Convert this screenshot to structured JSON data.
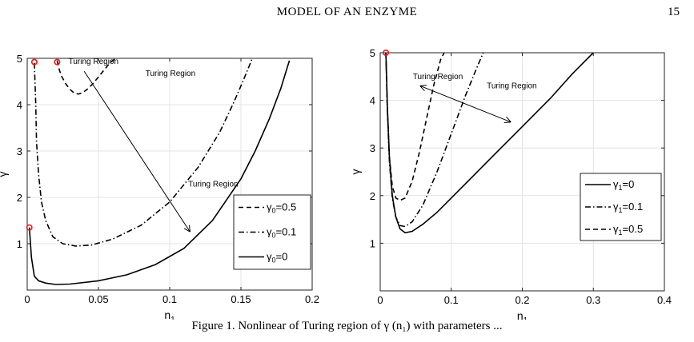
{
  "header": {
    "running_title": "MODEL OF AN ENZYME",
    "page_number": "15"
  },
  "caption": "Figure 1. Nonlinear of Turing region of γ (n₁) with parameters ...",
  "chart_data": [
    {
      "type": "line",
      "xlabel": "n",
      "xlabel_sub": "1",
      "ylabel": "γ",
      "xlim": [
        0,
        0.2
      ],
      "ylim": [
        0,
        5
      ],
      "grid": true,
      "xticks": [
        0,
        0.05,
        0.1,
        0.15,
        0.2
      ],
      "xtick_labels": [
        "0",
        "0.05",
        "0.1",
        "0.15",
        "0.2"
      ],
      "yticks": [
        1,
        2,
        3,
        4,
        5
      ],
      "ytick_labels": [
        "1",
        "2",
        "3",
        "4",
        "5"
      ],
      "legend_position": "lower-right",
      "legend": [
        {
          "base": "γ",
          "sub": "0",
          "suffix": "=0.5",
          "style": "dash"
        },
        {
          "base": "γ",
          "sub": "0",
          "suffix": "=0.1",
          "style": "dashdot"
        },
        {
          "base": "γ",
          "sub": "0",
          "suffix": "=0",
          "style": "solid"
        }
      ],
      "series": [
        {
          "style": "dash",
          "x": [
            0.021,
            0.022,
            0.024,
            0.027,
            0.03,
            0.033,
            0.036,
            0.039,
            0.042,
            0.046,
            0.05,
            0.054,
            0.058,
            0.062
          ],
          "y": [
            4.95,
            4.8,
            4.62,
            4.45,
            4.33,
            4.25,
            4.23,
            4.26,
            4.33,
            4.45,
            4.6,
            4.75,
            4.9,
            5.0
          ]
        },
        {
          "style": "dashdot",
          "x": [
            0.005,
            0.006,
            0.0065,
            0.008,
            0.01,
            0.013,
            0.018,
            0.025,
            0.034,
            0.045,
            0.06,
            0.08,
            0.1,
            0.12,
            0.135,
            0.145,
            0.152,
            0.158
          ],
          "y": [
            4.9,
            4.0,
            3.2,
            2.5,
            1.9,
            1.5,
            1.15,
            1.0,
            0.95,
            0.97,
            1.1,
            1.4,
            1.9,
            2.65,
            3.4,
            4.05,
            4.55,
            5.0
          ]
        },
        {
          "style": "solid",
          "x": [
            0.0015,
            0.003,
            0.005,
            0.008,
            0.013,
            0.02,
            0.03,
            0.05,
            0.07,
            0.09,
            0.11,
            0.13,
            0.15,
            0.16,
            0.17,
            0.178,
            0.184
          ],
          "y": [
            1.35,
            0.7,
            0.3,
            0.2,
            0.15,
            0.12,
            0.13,
            0.2,
            0.33,
            0.55,
            0.9,
            1.5,
            2.4,
            3.0,
            3.7,
            4.35,
            4.95
          ]
        }
      ],
      "markers": [
        {
          "x": 0.0015,
          "y": 1.35
        },
        {
          "x": 0.005,
          "y": 4.92
        },
        {
          "x": 0.021,
          "y": 4.92
        }
      ],
      "annotations": [
        {
          "text": "Turing Region",
          "x": 0.029,
          "y": 4.88
        },
        {
          "text": "Turing Region",
          "x": 0.083,
          "y": 4.62
        },
        {
          "text": "Turing Region",
          "x": 0.113,
          "y": 2.23
        }
      ],
      "arrow": {
        "x1": 0.04,
        "y1": 4.72,
        "x2": 0.114,
        "y2": 1.27
      }
    },
    {
      "type": "line",
      "xlabel": "n",
      "xlabel_sub": "1",
      "ylabel": "γ",
      "xlim": [
        0,
        0.4
      ],
      "ylim": [
        0,
        5
      ],
      "grid": true,
      "xticks": [
        0,
        0.1,
        0.2,
        0.3,
        0.4
      ],
      "xtick_labels": [
        "0",
        "0.1",
        "0.2",
        "0.3",
        "0.4"
      ],
      "yticks": [
        1,
        2,
        3,
        4,
        5
      ],
      "ytick_labels": [
        "1",
        "2",
        "3",
        "4",
        "5"
      ],
      "legend_position": "lower-right",
      "legend": [
        {
          "base": "γ",
          "sub": "1",
          "suffix": "=0",
          "style": "solid"
        },
        {
          "base": "γ",
          "sub": "1",
          "suffix": "=0.1",
          "style": "dashdot"
        },
        {
          "base": "γ",
          "sub": "1",
          "suffix": "=0.5",
          "style": "dash"
        }
      ],
      "series": [
        {
          "style": "solid",
          "x": [
            0.008,
            0.01,
            0.013,
            0.017,
            0.022,
            0.028,
            0.035,
            0.045,
            0.06,
            0.08,
            0.1,
            0.13,
            0.16,
            0.2,
            0.24,
            0.27,
            0.3
          ],
          "y": [
            5.0,
            3.9,
            2.8,
            2.0,
            1.55,
            1.3,
            1.22,
            1.25,
            1.4,
            1.65,
            1.95,
            2.4,
            2.85,
            3.45,
            4.05,
            4.55,
            5.0
          ]
        },
        {
          "style": "dashdot",
          "x": [
            0.008,
            0.01,
            0.013,
            0.017,
            0.022,
            0.028,
            0.035,
            0.045,
            0.06,
            0.08,
            0.1,
            0.12,
            0.135,
            0.145
          ],
          "y": [
            5.0,
            3.8,
            2.7,
            1.95,
            1.55,
            1.37,
            1.35,
            1.45,
            1.8,
            2.5,
            3.3,
            4.1,
            4.65,
            5.0
          ]
        },
        {
          "style": "dash",
          "x": [
            0.008,
            0.01,
            0.013,
            0.017,
            0.022,
            0.028,
            0.035,
            0.045,
            0.055,
            0.065,
            0.075,
            0.085,
            0.09
          ],
          "y": [
            5.0,
            3.8,
            2.8,
            2.2,
            1.95,
            1.9,
            1.95,
            2.3,
            2.9,
            3.6,
            4.3,
            4.85,
            5.0
          ]
        }
      ],
      "markers": [
        {
          "x": 0.008,
          "y": 5.0
        }
      ],
      "annotations": [
        {
          "text": "Turing Region",
          "x": 0.046,
          "y": 4.45
        },
        {
          "text": "Turing Region",
          "x": 0.15,
          "y": 4.25
        }
      ],
      "arrow": {
        "x1": 0.057,
        "y1": 4.3,
        "x2": 0.183,
        "y2": 3.55,
        "double": true
      }
    }
  ]
}
